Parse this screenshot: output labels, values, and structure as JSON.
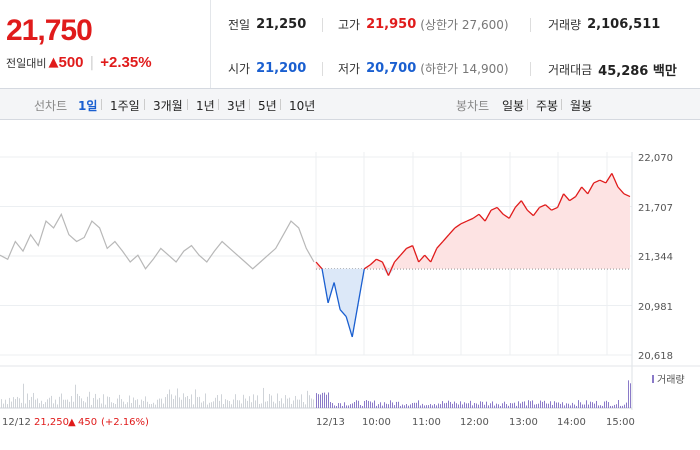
{
  "summary": {
    "price": "21,750",
    "diff_label": "전일대비",
    "diff_arrow": "▲",
    "diff_value": "500",
    "diff_sep": "|",
    "diff_pct": "+2.35%"
  },
  "stats": {
    "prev_label": "전일",
    "prev_value": "21,250",
    "high_label": "고가",
    "high_value": "21,950",
    "high_sub": "(상한가 27,600)",
    "volume_label": "거래량",
    "volume_value": "2,106,511",
    "open_label": "시가",
    "open_value": "21,200",
    "low_label": "저가",
    "low_value": "20,700",
    "low_sub": "(하한가 14,900)",
    "amount_label": "거래대금",
    "amount_value": "45,286 백만"
  },
  "tabs": {
    "line_title": "선차트",
    "line_tabs": [
      "1일",
      "1주일",
      "3개월",
      "1년",
      "3년",
      "5년",
      "10년"
    ],
    "active": "1일",
    "candle_title": "봉차트",
    "candle_tabs": [
      "일봉",
      "주봉",
      "월봉"
    ]
  },
  "colors": {
    "up": "#e01b1b",
    "down": "#1a5fd0",
    "prev_line": "#b8b8b8",
    "volume_today": "#8a7ac8"
  },
  "chart_data": {
    "type": "line",
    "y_ticks": [
      "22,070",
      "21,707",
      "21,344",
      "20,981",
      "20,618"
    ],
    "ylim": [
      20618,
      22070
    ],
    "base_price": 21250,
    "x_ticks": [
      "12/13",
      "10:00",
      "11:00",
      "12:00",
      "13:00",
      "14:00",
      "15:00"
    ],
    "prev_day_label": "12/12",
    "prev_day_close": "21,250",
    "prev_day_arrow": "▲",
    "prev_day_change": "450",
    "prev_day_pct": "(+2.16%)",
    "volume_legend": "거래량",
    "series": [
      {
        "values_prev": [
          21350,
          21320,
          21450,
          21380,
          21500,
          21420,
          21600,
          21550,
          21650,
          21500,
          21450,
          21480,
          21600,
          21550,
          21400,
          21450,
          21380,
          21300,
          21350,
          21250,
          21320,
          21400,
          21350,
          21300,
          21380,
          21420,
          21350,
          21300,
          21380,
          21450,
          21400,
          21350,
          21300,
          21250,
          21300,
          21350,
          21400,
          21500,
          21600,
          21550,
          21400,
          21300
        ]
      },
      {
        "values_today": [
          21300,
          21250,
          21000,
          21150,
          20950,
          20900,
          20750,
          21000,
          21250,
          21280,
          21320,
          21300,
          21200,
          21300,
          21350,
          21400,
          21420,
          21300,
          21350,
          21300,
          21400,
          21450,
          21500,
          21550,
          21580,
          21600,
          21620,
          21650,
          21600,
          21680,
          21700,
          21650,
          21620,
          21700,
          21750,
          21680,
          21640,
          21700,
          21720,
          21680,
          21700,
          21800,
          21750,
          21780,
          21850,
          21800,
          21880,
          21900,
          21880,
          21950,
          21850,
          21800,
          21780
        ]
      }
    ]
  }
}
